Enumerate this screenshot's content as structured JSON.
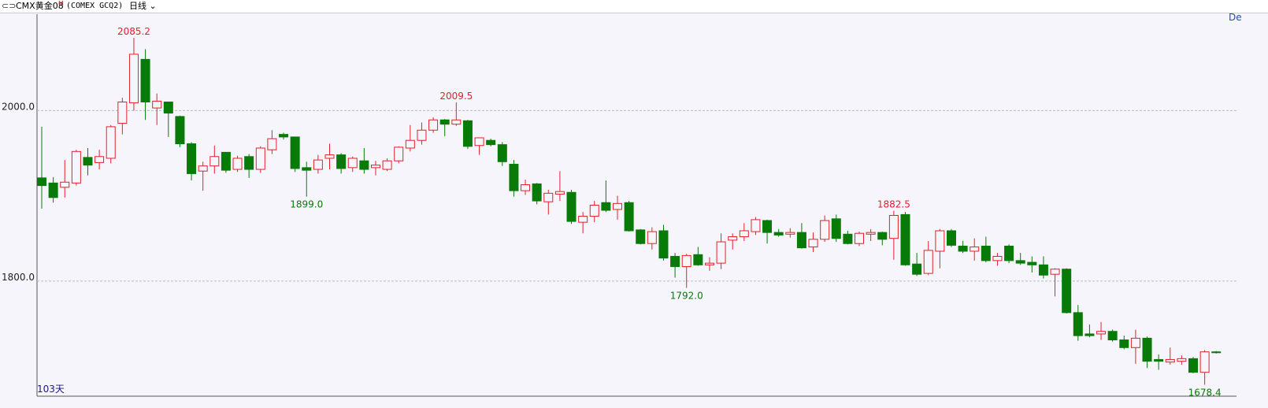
{
  "header": {
    "symbol": "CMX黄金08",
    "badge": "M",
    "code": "(COMEX GCQ2)",
    "period": "日线",
    "corner": "De"
  },
  "chart_data": {
    "type": "candlestick",
    "footer": "103天",
    "up_color": "#e4202a",
    "down_color": "#087a08",
    "ylim": [
      1665,
      2113
    ],
    "yticks": [
      {
        "value": 1800,
        "label": "1800.0"
      },
      {
        "value": 2000,
        "label": "2000.0"
      }
    ],
    "grid": true,
    "open": [
      1921,
      1915,
      1910,
      1915,
      1945,
      1939,
      1944,
      1985,
      2009,
      2060,
      2003,
      2010,
      1993,
      1961,
      1929,
      1935,
      1951,
      1931,
      1946,
      1931,
      1954,
      1972,
      1969,
      1933,
      1931,
      1944,
      1948,
      1933,
      1941,
      1933,
      1931,
      1941,
      1956,
      1965,
      1977,
      1989,
      1984,
      1988,
      1959,
      1965,
      1960,
      1937,
      1906,
      1914,
      1893,
      1902,
      1904,
      1869,
      1876,
      1892,
      1884,
      1892,
      1860,
      1844,
      1859,
      1829,
      1817,
      1831,
      1819,
      1821,
      1848,
      1852,
      1858,
      1871,
      1857,
      1855,
      1857,
      1840,
      1849,
      1873,
      1855,
      1844,
      1855,
      1857,
      1850,
      1878,
      1820,
      1809,
      1835,
      1859,
      1841,
      1835,
      1841,
      1824,
      1841,
      1824,
      1822,
      1819,
      1808,
      1814,
      1763,
      1738,
      1738,
      1741,
      1731,
      1722,
      1733,
      1708,
      1705,
      1706,
      1709,
      1693,
      1717
    ],
    "high": [
      1981,
      1922,
      1942,
      1954,
      1956,
      1954,
      1983,
      2015,
      2085.2,
      2072,
      2020,
      2010,
      1994,
      1963,
      1940,
      1959,
      1951,
      1947,
      1949,
      1958,
      1977,
      1974,
      1969,
      1940,
      1948,
      1961,
      1950,
      1946,
      1956,
      1941,
      1944,
      1958,
      1983,
      1986,
      1992,
      1990,
      2009.5,
      1989,
      1968,
      1967,
      1963,
      1942,
      1919,
      1915,
      1907,
      1929,
      1907,
      1881,
      1894,
      1918,
      1900,
      1894,
      1861,
      1863,
      1866,
      1833,
      1832,
      1840,
      1828,
      1856,
      1856,
      1868,
      1875,
      1872,
      1861,
      1862,
      1868,
      1857,
      1877,
      1878,
      1859,
      1858,
      1861,
      1858,
      1882.5,
      1881,
      1833,
      1847,
      1861,
      1861,
      1847,
      1850,
      1852,
      1833,
      1843,
      1833,
      1829,
      1829,
      1815,
      1815,
      1772,
      1749,
      1752,
      1743,
      1736,
      1743,
      1735,
      1714,
      1722,
      1713,
      1711,
      1719,
      1718
    ],
    "low": [
      1885,
      1892,
      1898,
      1912,
      1924,
      1931,
      1938,
      1972,
      2000,
      1989,
      1983,
      1969,
      1957,
      1918,
      1906,
      1926,
      1927,
      1928,
      1921,
      1927,
      1949,
      1966,
      1928,
      1899,
      1926,
      1931,
      1926,
      1928,
      1926,
      1924,
      1929,
      1938,
      1952,
      1960,
      1974,
      1970,
      1982,
      1955,
      1948,
      1958,
      1935,
      1899,
      1901,
      1890,
      1878,
      1894,
      1867,
      1856,
      1869,
      1881,
      1872,
      1858,
      1843,
      1837,
      1824,
      1804,
      1792,
      1818,
      1812,
      1814,
      1837,
      1847,
      1854,
      1844,
      1852,
      1851,
      1838,
      1834,
      1846,
      1846,
      1843,
      1841,
      1847,
      1842,
      1825,
      1818,
      1806,
      1807,
      1815,
      1840,
      1833,
      1824,
      1822,
      1818,
      1821,
      1819,
      1810,
      1803,
      1782,
      1762,
      1730,
      1734,
      1731,
      1729,
      1720,
      1703,
      1698,
      1696,
      1702,
      1702,
      1692,
      1678.4,
      1715
    ],
    "close": [
      1912,
      1898,
      1916,
      1952,
      1936,
      1946,
      1981,
      2010,
      2066,
      2010,
      2011,
      1997,
      1961,
      1926,
      1935,
      1946,
      1930,
      1944,
      1931,
      1956,
      1967,
      1969,
      1932,
      1930,
      1942,
      1948,
      1932,
      1944,
      1931,
      1936,
      1941,
      1957,
      1965,
      1977,
      1989,
      1984,
      1989,
      1958,
      1968,
      1960,
      1940,
      1906,
      1913,
      1894,
      1903,
      1905,
      1870,
      1876,
      1889,
      1883,
      1891,
      1859,
      1844,
      1858,
      1827,
      1817,
      1830,
      1819,
      1821,
      1846,
      1852,
      1859,
      1872,
      1857,
      1854,
      1857,
      1839,
      1849,
      1871,
      1850,
      1844,
      1856,
      1857,
      1849,
      1877,
      1819,
      1808,
      1836,
      1859,
      1842,
      1835,
      1840,
      1824,
      1829,
      1824,
      1821,
      1819,
      1807,
      1814,
      1763,
      1736,
      1736,
      1741,
      1731,
      1722,
      1733,
      1706,
      1706,
      1708,
      1709,
      1693,
      1717,
      1716
    ],
    "annotations": [
      {
        "label": "2085.2",
        "value": 2085.2
      },
      {
        "label": "2009.5",
        "value": 2009.5
      },
      {
        "label": "1899.0",
        "value": 1899
      },
      {
        "label": "1792.0",
        "value": 1792
      },
      {
        "label": "1882.5",
        "value": 1882.5
      },
      {
        "label": "1678.4",
        "value": 1678.4
      }
    ]
  }
}
